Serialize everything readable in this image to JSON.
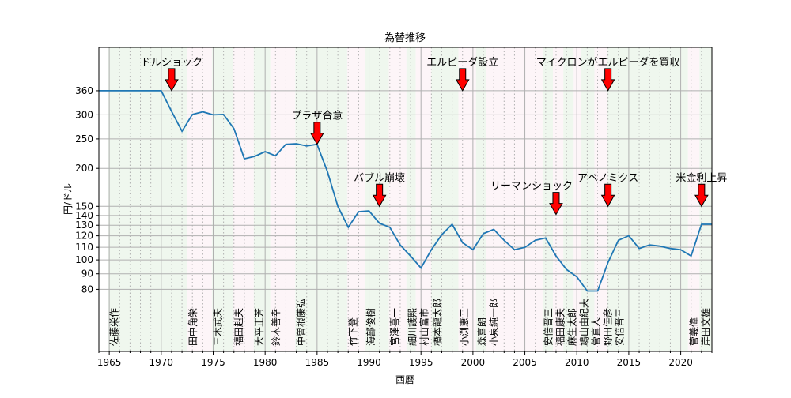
{
  "chart_data": {
    "type": "line",
    "title": "為替推移",
    "xlabel": "西暦",
    "ylabel": "円/ドル",
    "xlim": [
      1964,
      2023
    ],
    "ylim": [
      50,
      500
    ],
    "yscale": "log",
    "grid": true,
    "x_ticks": [
      1965,
      1970,
      1975,
      1980,
      1985,
      1990,
      1995,
      2000,
      2005,
      2010,
      2015,
      2020
    ],
    "y_ticks": [
      80,
      90,
      100,
      110,
      120,
      130,
      140,
      150,
      200,
      250,
      300,
      360
    ],
    "series": [
      {
        "name": "円/ドル",
        "color": "#1f77b4",
        "x": [
          1964,
          1965,
          1966,
          1967,
          1968,
          1969,
          1970,
          1971,
          1972,
          1973,
          1974,
          1975,
          1976,
          1977,
          1978,
          1979,
          1980,
          1981,
          1982,
          1983,
          1984,
          1985,
          1986,
          1987,
          1988,
          1989,
          1990,
          1991,
          1992,
          1993,
          1994,
          1995,
          1996,
          1997,
          1998,
          1999,
          2000,
          2001,
          2002,
          2003,
          2004,
          2005,
          2006,
          2007,
          2008,
          2009,
          2010,
          2011,
          2012,
          2013,
          2014,
          2015,
          2016,
          2017,
          2018,
          2019,
          2020,
          2021,
          2022,
          2023
        ],
        "values": [
          360,
          360,
          360,
          360,
          360,
          360,
          360,
          308,
          265,
          301,
          307,
          300,
          301,
          270,
          215,
          219,
          227,
          220,
          240,
          241,
          237,
          240,
          195,
          150,
          128,
          144,
          145,
          132,
          128,
          112,
          103,
          94,
          108,
          121,
          131,
          114,
          108,
          122,
          126,
          116,
          108,
          110,
          116,
          118,
          103,
          93,
          88,
          79,
          79,
          98,
          116,
          120,
          109,
          112,
          111,
          109,
          108,
          103,
          131,
          131
        ]
      }
    ],
    "annotations": [
      {
        "text": "ドルショック",
        "x": 1971,
        "y": 360
      },
      {
        "text": "プラザ合意",
        "x": 1985,
        "y": 240
      },
      {
        "text": "バブル崩壊",
        "x": 1991,
        "y": 150
      },
      {
        "text": "エルピーダ設立",
        "x": 1999,
        "y": 360
      },
      {
        "text": "リーマンショック",
        "x": 2008,
        "y": 141
      },
      {
        "text": "アベノミクス",
        "x": 2013,
        "y": 150
      },
      {
        "text": "マイクロンがエルピーダを買収",
        "x": 2013,
        "y": 360
      },
      {
        "text": "米金利上昇",
        "x": 2022,
        "y": 150
      }
    ],
    "annotation_color": "#ff0000",
    "prime_ministers": [
      {
        "name": "佐藤栄作",
        "start": 1964.9
      },
      {
        "name": "田中角栄",
        "start": 1972.5
      },
      {
        "name": "三木武夫",
        "start": 1974.9
      },
      {
        "name": "福田赳夫",
        "start": 1976.9
      },
      {
        "name": "大平正芳",
        "start": 1978.9
      },
      {
        "name": "鈴木善幸",
        "start": 1980.5
      },
      {
        "name": "中曽根康弘",
        "start": 1982.9
      },
      {
        "name": "竹下登",
        "start": 1987.9
      },
      {
        "name": "海部俊樹",
        "start": 1989.6
      },
      {
        "name": "宮澤喜一",
        "start": 1991.9
      },
      {
        "name": "細川護熙",
        "start": 1993.6
      },
      {
        "name": "村山富市",
        "start": 1994.5
      },
      {
        "name": "橋本龍太郎",
        "start": 1996.0
      },
      {
        "name": "小渕恵三",
        "start": 1998.6
      },
      {
        "name": "森喜朗",
        "start": 2000.3
      },
      {
        "name": "小泉純一郎",
        "start": 2001.3
      },
      {
        "name": "安倍晋三",
        "start": 2006.7
      },
      {
        "name": "福田康夫",
        "start": 2007.7
      },
      {
        "name": "麻生太郎",
        "start": 2008.7
      },
      {
        "name": "鳩山由紀夫",
        "start": 2009.7
      },
      {
        "name": "菅直人",
        "start": 2010.4
      },
      {
        "name": "野田佳彦",
        "start": 2011.7
      },
      {
        "name": "安倍晋三",
        "start": 2012.9
      },
      {
        "name": "菅義偉",
        "start": 2020.7
      },
      {
        "name": "岸田文雄",
        "start": 2021.8
      }
    ],
    "band_colors": [
      "#eff7ee",
      "#fdf5f8"
    ]
  }
}
